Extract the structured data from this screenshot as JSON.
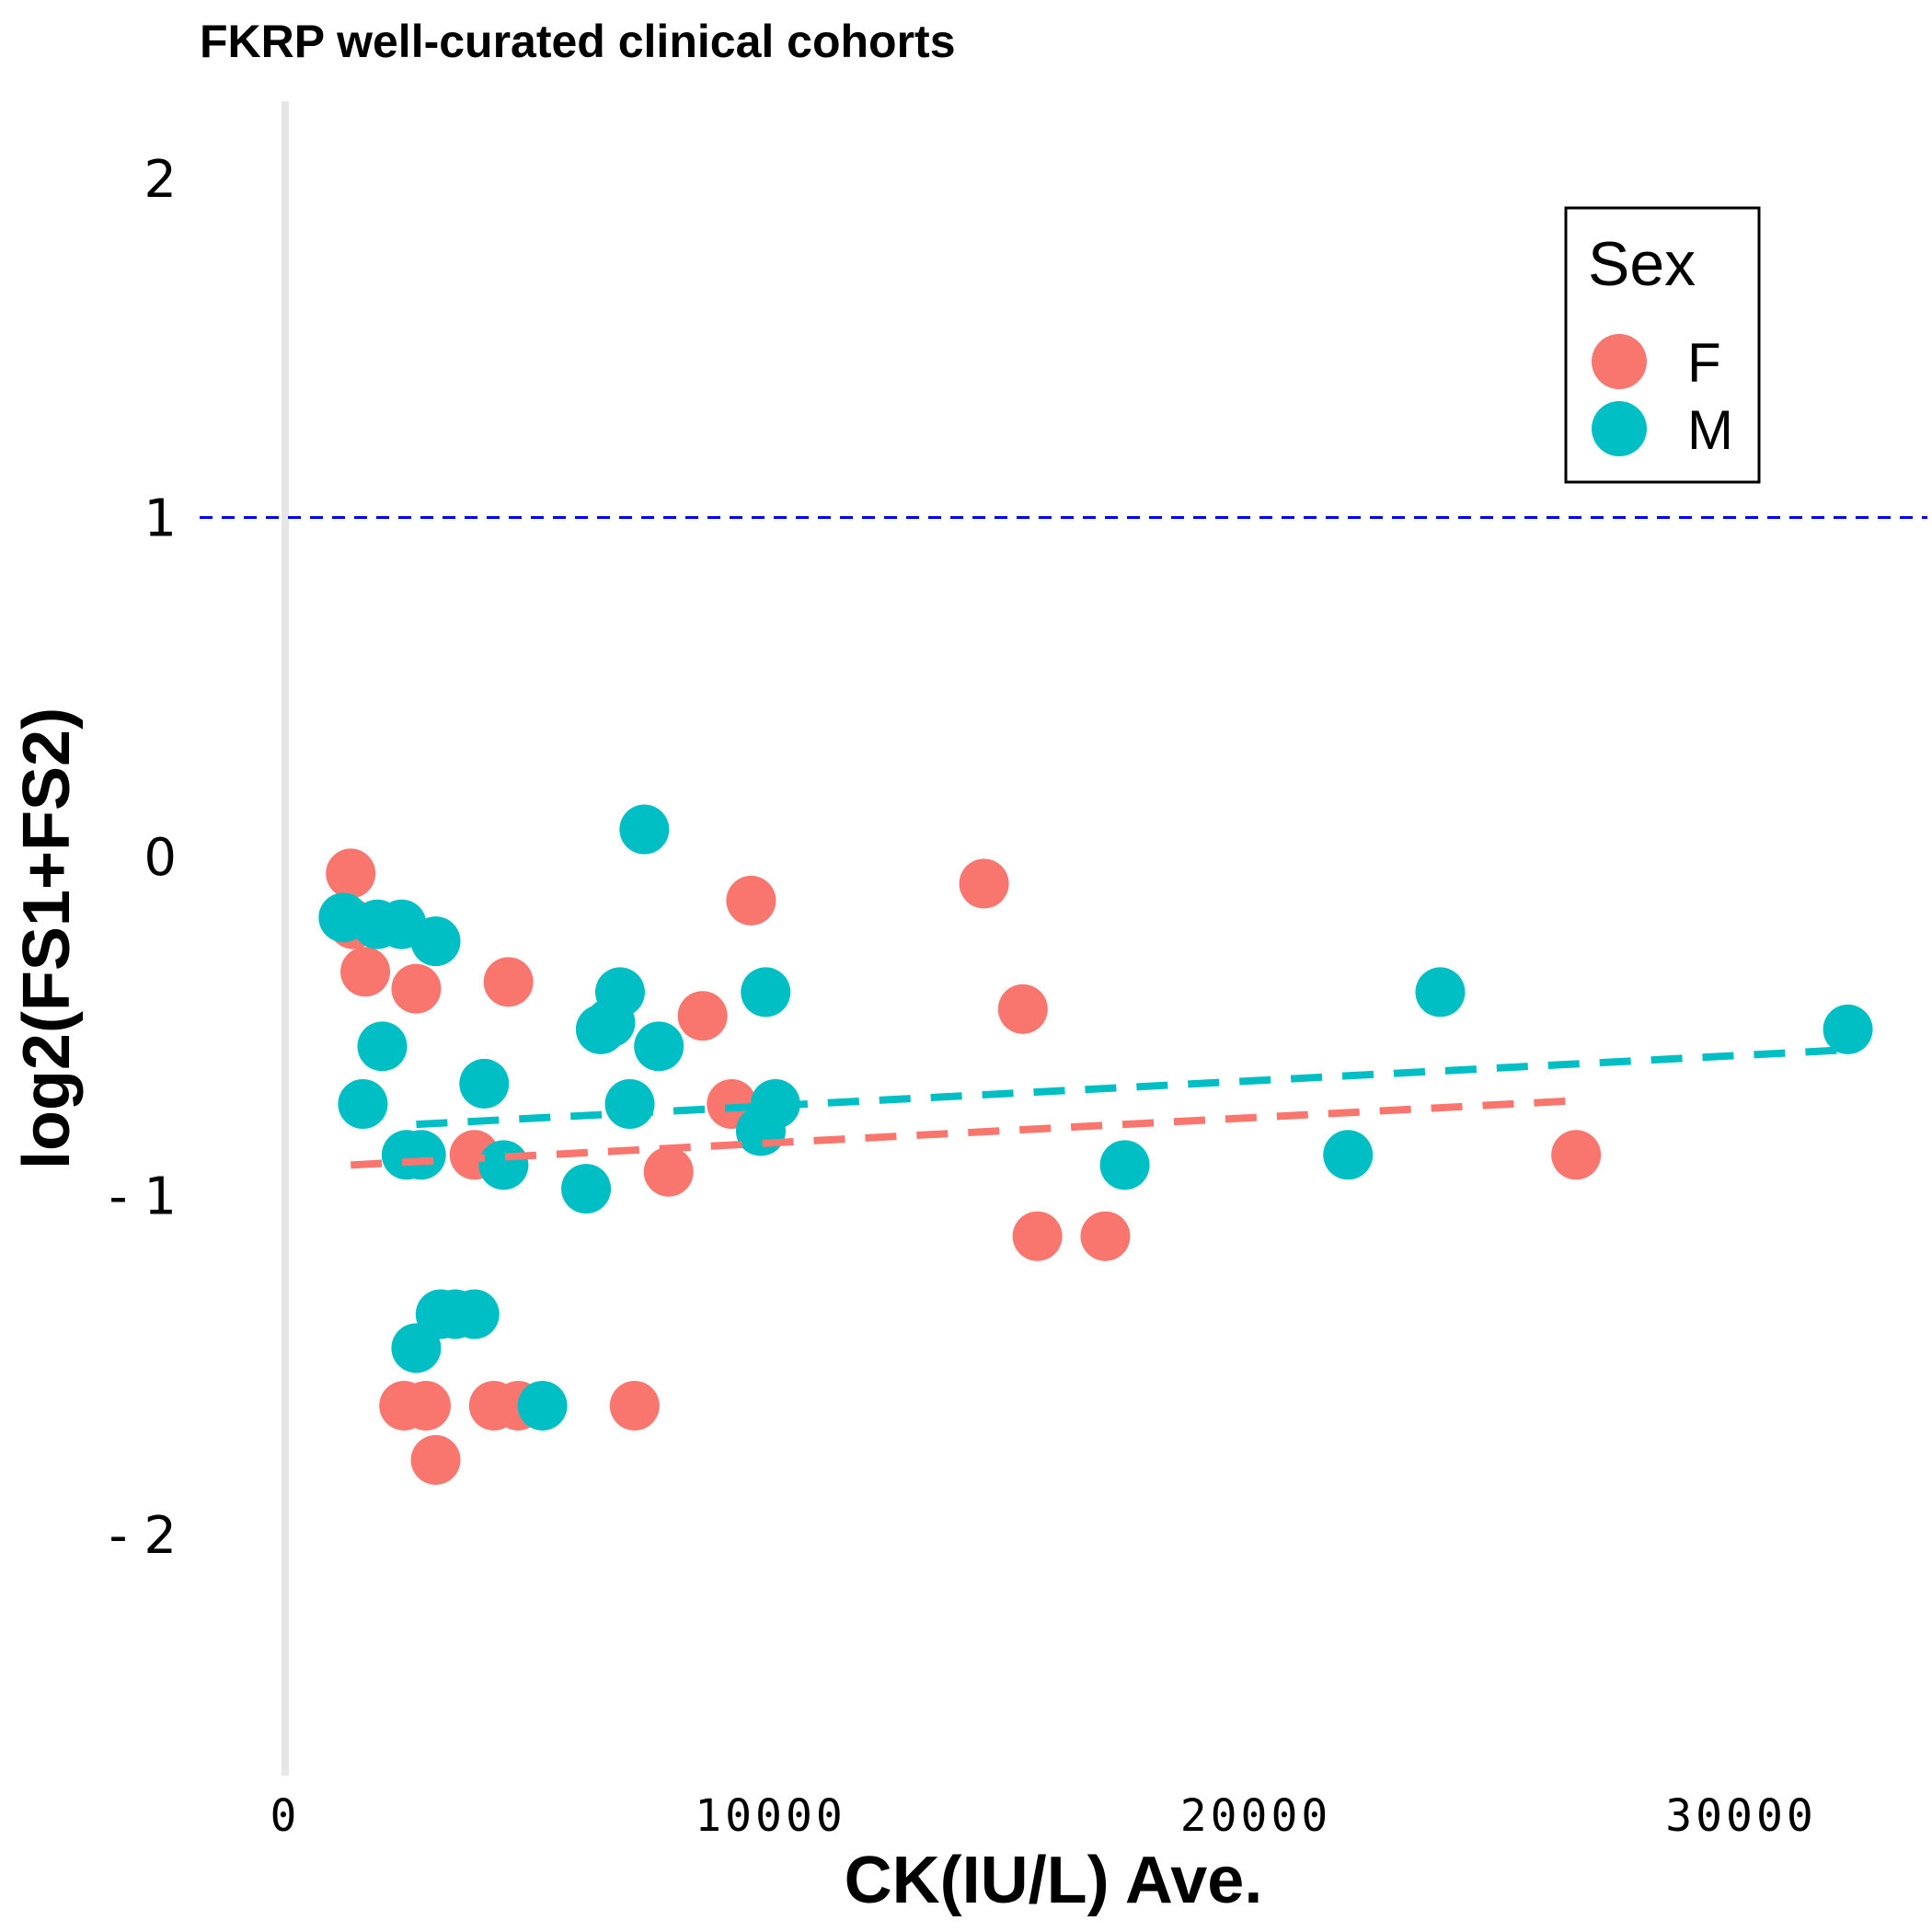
{
  "chart_data": {
    "type": "scatter",
    "title": "FKRP well-curated clinical cohorts",
    "xlabel": "CK(IU/L) Ave.",
    "ylabel": "log2(FS1+FS2)",
    "xlim": [
      -500,
      34000
    ],
    "ylim": [
      -2.6,
      2.2
    ],
    "x_ticks": [
      0,
      10000,
      20000,
      30000
    ],
    "x_tick_labels": [
      "0",
      "10000",
      "20000",
      "30000"
    ],
    "y_ticks": [
      2,
      1,
      0,
      -1,
      -2
    ],
    "y_tick_labels": [
      "2",
      "1",
      "0",
      "- 1",
      "- 2"
    ],
    "reference_line": {
      "y": 1,
      "color": "#0000ff",
      "style": "dashed"
    },
    "grid": false,
    "legend": {
      "title": "Sex",
      "position": "top-right"
    },
    "series": [
      {
        "name": "F",
        "color": "#F8766D",
        "points": [
          {
            "x": 1350,
            "y": -0.05
          },
          {
            "x": 1400,
            "y": -0.2
          },
          {
            "x": 1650,
            "y": -0.34
          },
          {
            "x": 2700,
            "y": -0.39
          },
          {
            "x": 4600,
            "y": -0.37
          },
          {
            "x": 3900,
            "y": -0.88
          },
          {
            "x": 2450,
            "y": -1.62
          },
          {
            "x": 2900,
            "y": -1.62
          },
          {
            "x": 3100,
            "y": -1.78
          },
          {
            "x": 4300,
            "y": -1.62
          },
          {
            "x": 4800,
            "y": -1.62
          },
          {
            "x": 7200,
            "y": -1.62
          },
          {
            "x": 7900,
            "y": -0.93
          },
          {
            "x": 8600,
            "y": -0.47
          },
          {
            "x": 9200,
            "y": -0.73
          },
          {
            "x": 9600,
            "y": -0.13
          },
          {
            "x": 14400,
            "y": -0.08
          },
          {
            "x": 15200,
            "y": -0.45
          },
          {
            "x": 15500,
            "y": -1.12
          },
          {
            "x": 16900,
            "y": -1.12
          },
          {
            "x": 26600,
            "y": -0.88
          }
        ],
        "trend": {
          "x": [
            1350,
            26600
          ],
          "y": [
            -0.91,
            -0.72
          ]
        }
      },
      {
        "name": "M",
        "color": "#00BFC4",
        "points": [
          {
            "x": 1200,
            "y": -0.18
          },
          {
            "x": 1900,
            "y": -0.2
          },
          {
            "x": 2400,
            "y": -0.2
          },
          {
            "x": 3100,
            "y": -0.25
          },
          {
            "x": 2000,
            "y": -0.56
          },
          {
            "x": 1600,
            "y": -0.73
          },
          {
            "x": 2500,
            "y": -0.88
          },
          {
            "x": 2800,
            "y": -0.88
          },
          {
            "x": 4100,
            "y": -0.67
          },
          {
            "x": 4500,
            "y": -0.91
          },
          {
            "x": 6200,
            "y": -0.98
          },
          {
            "x": 6500,
            "y": -0.51
          },
          {
            "x": 6700,
            "y": -0.49
          },
          {
            "x": 6900,
            "y": -0.4
          },
          {
            "x": 7100,
            "y": -0.73
          },
          {
            "x": 7400,
            "y": 0.08
          },
          {
            "x": 7700,
            "y": -0.56
          },
          {
            "x": 9800,
            "y": -0.81
          },
          {
            "x": 9900,
            "y": -0.4
          },
          {
            "x": 10100,
            "y": -0.73
          },
          {
            "x": 2700,
            "y": -1.45
          },
          {
            "x": 3200,
            "y": -1.35
          },
          {
            "x": 3500,
            "y": -1.35
          },
          {
            "x": 3900,
            "y": -1.35
          },
          {
            "x": 5300,
            "y": -1.62
          },
          {
            "x": 17300,
            "y": -0.91
          },
          {
            "x": 21900,
            "y": -0.88
          },
          {
            "x": 23800,
            "y": -0.4
          },
          {
            "x": 32200,
            "y": -0.51
          }
        ],
        "trend": {
          "x": [
            2700,
            32200
          ],
          "y": [
            -0.79,
            -0.57
          ]
        }
      }
    ]
  }
}
